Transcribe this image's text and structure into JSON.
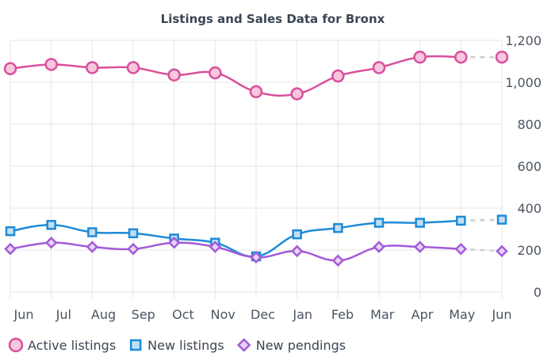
{
  "chart_data": {
    "type": "line",
    "title": "Listings and Sales Data for Bronx",
    "categories": [
      "Jun",
      "Jul",
      "Aug",
      "Sep",
      "Oct",
      "Nov",
      "Dec",
      "Jan",
      "Feb",
      "Mar",
      "Apr",
      "May",
      "Jun"
    ],
    "y_ticks": [
      "0",
      "200",
      "400",
      "600",
      "800",
      "1,000",
      "1,200"
    ],
    "ylim": [
      0,
      1200
    ],
    "y_axis_side": "right",
    "grid": true,
    "legend_position": "bottom-left",
    "series": [
      {
        "name": "Active listings",
        "marker": "circle",
        "color": "#d94f9c",
        "fill": "#f7c6df",
        "values": [
          1065,
          1085,
          1070,
          1070,
          1035,
          1045,
          955,
          945,
          1030,
          1070,
          1120,
          1120,
          1120
        ]
      },
      {
        "name": "New listings",
        "marker": "square",
        "color": "#1f8ad6",
        "fill": "#bfe0f7",
        "values": [
          290,
          320,
          285,
          280,
          255,
          235,
          170,
          275,
          305,
          330,
          330,
          340,
          345
        ]
      },
      {
        "name": "New pendings",
        "marker": "diamond",
        "color": "#a35ad8",
        "fill": "#e6d3f5",
        "values": [
          205,
          235,
          215,
          205,
          235,
          215,
          165,
          195,
          150,
          215,
          215,
          205,
          195
        ]
      }
    ]
  }
}
